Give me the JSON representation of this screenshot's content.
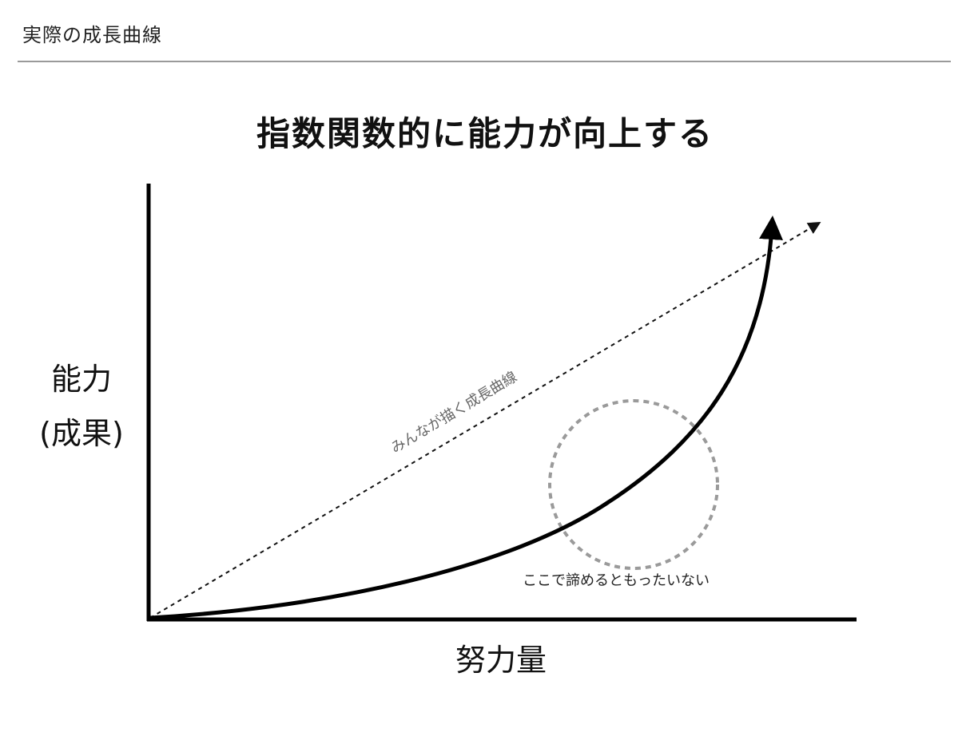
{
  "header": {
    "section_title": "実際の成長曲線"
  },
  "title": "指数関数的に能力が向上する",
  "axes": {
    "y_label_line1": "能力",
    "y_label_line2": "(成果)",
    "x_label": "努力量"
  },
  "lines": {
    "expected_label": "みんなが描く成長曲線"
  },
  "annotation": {
    "note": "ここで諦めるともったいない"
  },
  "colors": {
    "curve": "#000000",
    "dashed_line": "#111111",
    "circle": "#9a9a9a",
    "rule": "#9a9a9a"
  }
}
